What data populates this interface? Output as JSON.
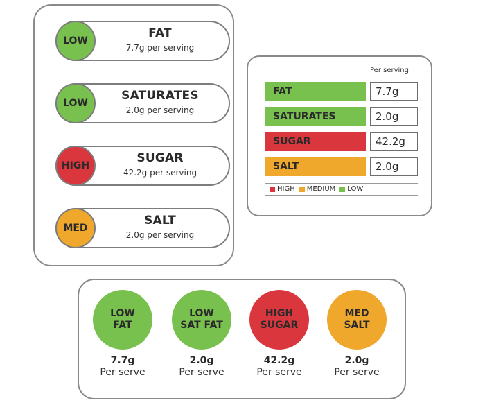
{
  "colors": {
    "low": "#79c14e",
    "medium": "#efa72c",
    "high": "#d9363e"
  },
  "pills": [
    {
      "level": "LOW",
      "level_key": "low",
      "name": "FAT",
      "amount": "7.7g per serving"
    },
    {
      "level": "LOW",
      "level_key": "low",
      "name": "SATURATES",
      "amount": "2.0g per serving"
    },
    {
      "level": "HIGH",
      "level_key": "high",
      "name": "SUGAR",
      "amount": "42.2g per serving"
    },
    {
      "level": "MED",
      "level_key": "medium",
      "name": "SALT",
      "amount": "2.0g per serving"
    }
  ],
  "table": {
    "header": "Per serving",
    "rows": [
      {
        "name": "FAT",
        "value": "7.7g",
        "level_key": "low"
      },
      {
        "name": "SATURATES",
        "value": "2.0g",
        "level_key": "low"
      },
      {
        "name": "SUGAR",
        "value": "42.2g",
        "level_key": "high"
      },
      {
        "name": "SALT",
        "value": "2.0g",
        "level_key": "medium"
      }
    ],
    "legend": [
      {
        "label": "HIGH",
        "level_key": "high"
      },
      {
        "label": "MEDIUM",
        "level_key": "medium"
      },
      {
        "label": "LOW",
        "level_key": "low"
      }
    ]
  },
  "circles": [
    {
      "line1": "LOW",
      "line2": "FAT",
      "level_key": "low",
      "amount": "7.7g",
      "per": "Per serve"
    },
    {
      "line1": "LOW",
      "line2": "SAT FAT",
      "level_key": "low",
      "amount": "2.0g",
      "per": "Per serve"
    },
    {
      "line1": "HIGH",
      "line2": "SUGAR",
      "level_key": "high",
      "amount": "42.2g",
      "per": "Per serve"
    },
    {
      "line1": "MED",
      "line2": "SALT",
      "level_key": "medium",
      "amount": "2.0g",
      "per": "Per serve"
    }
  ]
}
